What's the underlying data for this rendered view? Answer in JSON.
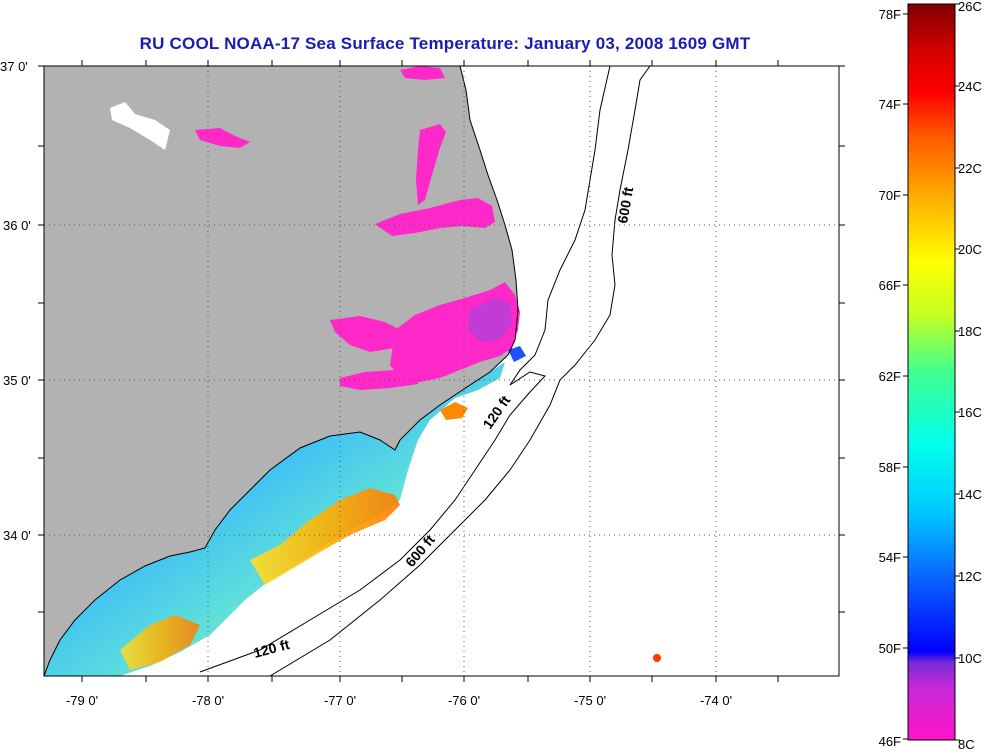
{
  "title": "RU COOL  NOAA-17  Sea Surface Temperature:  January 03, 2008 1609 GMT",
  "map": {
    "lat_labels": [
      "37 0'",
      "36 0'",
      "35 0'",
      "34 0'"
    ],
    "lon_labels": [
      "-79 0'",
      "-78 0'",
      "-77 0'",
      "-76 0'",
      "-75 0'",
      "-74 0'"
    ],
    "contour_labels": [
      "600 ft",
      "120 ft",
      "600 ft",
      "120 ft"
    ],
    "land_color": "#b2b2b2",
    "ocean_color": "#ffffff"
  },
  "colorbar": {
    "celsius_labels": [
      "26C",
      "24C",
      "22C",
      "20C",
      "18C",
      "16C",
      "14C",
      "12C",
      "10C",
      "8C"
    ],
    "fahrenheit_labels": [
      "78F",
      "74F",
      "70F",
      "66F",
      "62F",
      "58F",
      "54F",
      "50F",
      "46F"
    ],
    "range_c": [
      8,
      26
    ],
    "range_f": [
      46,
      78
    ]
  }
}
